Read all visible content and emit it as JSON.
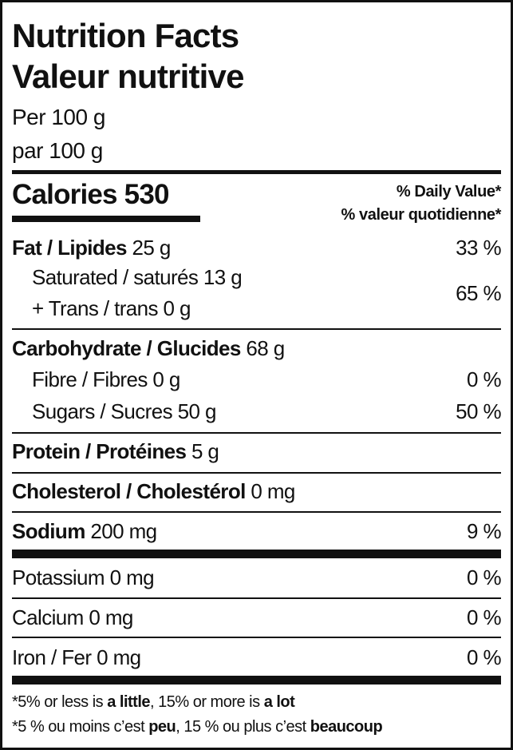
{
  "title_en": "Nutrition Facts",
  "title_fr": "Valeur nutritive",
  "serving_en": "Per 100 g",
  "serving_fr": "par 100 g",
  "calories_label": "Calories",
  "calories_value": "530",
  "dv_header_en": "% Daily Value*",
  "dv_header_fr": "% valeur quotidienne*",
  "rows": {
    "fat": {
      "label": "Fat / Lipides",
      "amount": "25 g",
      "dv": "33 %"
    },
    "saturated": {
      "label": "Saturated / saturés 13 g"
    },
    "trans": {
      "label": "+ Trans / trans 0 g",
      "dv": "65 %"
    },
    "carb": {
      "label": "Carbohydrate / Glucides",
      "amount": "68 g"
    },
    "fibre": {
      "label": "Fibre / Fibres 0 g",
      "dv": "0 %"
    },
    "sugars": {
      "label": "Sugars / Sucres 50 g",
      "dv": "50 %"
    },
    "protein": {
      "label": "Protein / Protéines",
      "amount": "5 g"
    },
    "cholesterol": {
      "label": "Cholesterol / Cholestérol",
      "amount": "0 mg"
    },
    "sodium": {
      "label": "Sodium",
      "amount": "200 mg",
      "dv": "9 %"
    },
    "potassium": {
      "label": "Potassium 0 mg",
      "dv": "0 %"
    },
    "calcium": {
      "label": "Calcium 0 mg",
      "dv": "0 %"
    },
    "iron": {
      "label": "Iron / Fer 0 mg",
      "dv": "0 %"
    }
  },
  "footnote_en": {
    "a": "*5% or less is ",
    "b": "a little",
    "c": ", 15% or more is ",
    "d": "a lot"
  },
  "footnote_fr": {
    "a": "*5 % ou moins c’est ",
    "b": "peu",
    "c": ", 15 % ou plus c’est ",
    "d": "beaucoup"
  }
}
